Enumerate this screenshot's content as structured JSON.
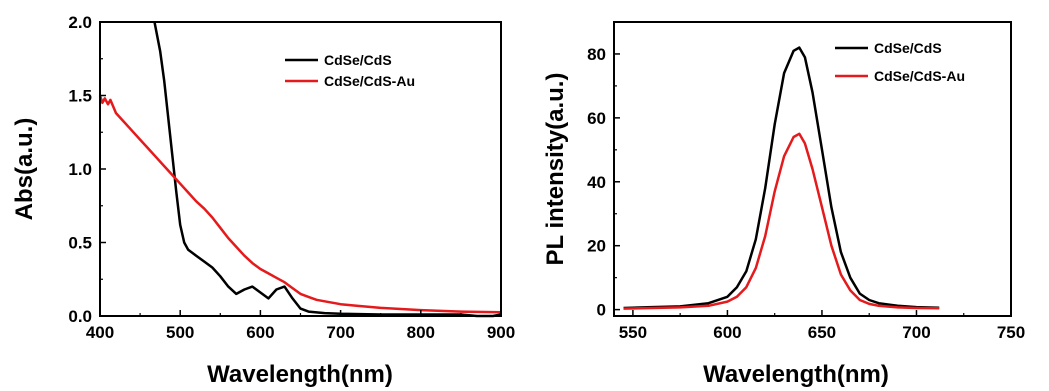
{
  "chart_data": [
    {
      "type": "line",
      "title": "",
      "xlabel": "Wavelength(nm)",
      "ylabel": "Abs(a.u.)",
      "xlim": [
        400,
        900
      ],
      "ylim": [
        0.0,
        2.0
      ],
      "xticks": [
        400,
        500,
        600,
        700,
        800,
        900
      ],
      "yticks": [
        0.0,
        0.5,
        1.0,
        1.5,
        2.0
      ],
      "xtick_labels": [
        "400",
        "500",
        "600",
        "700",
        "800",
        "900"
      ],
      "ytick_labels": [
        "0.0",
        "0.5",
        "1.0",
        "1.5",
        "2.0"
      ],
      "grid": false,
      "legend_position": "top-right",
      "series": [
        {
          "name": "CdSe/CdS",
          "color": "#000000",
          "x": [
            468,
            475,
            480,
            485,
            490,
            495,
            500,
            505,
            510,
            520,
            530,
            540,
            550,
            560,
            570,
            580,
            590,
            600,
            610,
            620,
            630,
            640,
            650,
            660,
            680,
            700,
            750,
            800,
            850,
            870,
            880,
            890,
            900
          ],
          "y": [
            2.0,
            1.8,
            1.6,
            1.35,
            1.1,
            0.85,
            0.62,
            0.5,
            0.45,
            0.41,
            0.37,
            0.33,
            0.27,
            0.2,
            0.15,
            0.18,
            0.2,
            0.16,
            0.12,
            0.18,
            0.2,
            0.12,
            0.05,
            0.03,
            0.02,
            0.015,
            0.01,
            0.01,
            0.01,
            0.0,
            -0.02,
            0.0,
            0.01
          ]
        },
        {
          "name": "CdSe/CdS-Au",
          "color": "#e41a1c",
          "x": [
            400,
            403,
            406,
            410,
            413,
            420,
            430,
            440,
            450,
            460,
            470,
            480,
            490,
            500,
            510,
            520,
            530,
            540,
            550,
            560,
            570,
            580,
            590,
            600,
            610,
            620,
            630,
            640,
            650,
            660,
            670,
            680,
            700,
            720,
            750,
            800,
            850,
            900
          ],
          "y": [
            1.5,
            1.45,
            1.48,
            1.44,
            1.47,
            1.38,
            1.32,
            1.26,
            1.2,
            1.14,
            1.08,
            1.02,
            0.96,
            0.9,
            0.84,
            0.78,
            0.73,
            0.67,
            0.6,
            0.53,
            0.47,
            0.41,
            0.36,
            0.32,
            0.29,
            0.26,
            0.23,
            0.19,
            0.15,
            0.13,
            0.11,
            0.1,
            0.08,
            0.07,
            0.055,
            0.04,
            0.03,
            0.025
          ]
        }
      ]
    },
    {
      "type": "line",
      "title": "",
      "xlabel": "Wavelength(nm)",
      "ylabel": "PL intensity(a.u.)",
      "xlim": [
        540,
        750
      ],
      "ylim": [
        -2,
        90
      ],
      "xticks": [
        550,
        600,
        650,
        700,
        750
      ],
      "yticks": [
        0,
        20,
        40,
        60,
        80
      ],
      "xtick_labels": [
        "550",
        "600",
        "650",
        "700",
        "750"
      ],
      "ytick_labels": [
        "0",
        "20",
        "40",
        "60",
        "80"
      ],
      "grid": false,
      "legend_position": "top-right",
      "series": [
        {
          "name": "CdSe/CdS",
          "color": "#000000",
          "x": [
            545,
            560,
            575,
            590,
            600,
            605,
            610,
            615,
            620,
            625,
            630,
            635,
            638,
            641,
            645,
            650,
            655,
            660,
            665,
            670,
            675,
            680,
            690,
            700,
            712
          ],
          "y": [
            0.5,
            0.8,
            1,
            2,
            4,
            7,
            12,
            22,
            38,
            58,
            74,
            81,
            82,
            79,
            68,
            50,
            32,
            18,
            10,
            5,
            3,
            2,
            1.2,
            0.8,
            0.6
          ]
        },
        {
          "name": "CdSe/CdS-Au",
          "color": "#e41a1c",
          "x": [
            545,
            560,
            575,
            590,
            600,
            605,
            610,
            615,
            620,
            625,
            630,
            635,
            638,
            641,
            645,
            650,
            655,
            660,
            665,
            670,
            675,
            680,
            690,
            700,
            712
          ],
          "y": [
            0.3,
            0.5,
            0.7,
            1.2,
            2.5,
            4,
            7,
            13,
            23,
            37,
            48,
            54,
            55,
            52,
            44,
            32,
            20,
            11,
            6,
            3,
            1.8,
            1.2,
            0.7,
            0.5,
            0.4
          ]
        }
      ]
    }
  ]
}
